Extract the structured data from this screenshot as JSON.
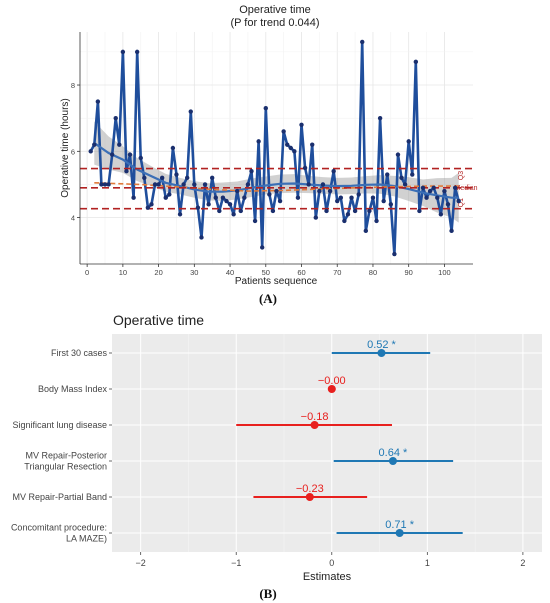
{
  "chart_data": [
    {
      "type": "line",
      "title": "Operative time",
      "subtitle": "(P for trend 0.044)",
      "xlabel": "Patients sequence",
      "ylabel": "Operative time (hours)",
      "xlim": [
        -2,
        108
      ],
      "ylim": [
        2.6,
        9.6
      ],
      "xticks": [
        0,
        10,
        20,
        30,
        40,
        50,
        60,
        70,
        80,
        90,
        100
      ],
      "yticks": [
        4,
        6,
        8
      ],
      "grid": true,
      "panel_label": "(A)",
      "reference_lines": [
        {
          "label": "Q3",
          "y": 5.48,
          "color": "#b22222"
        },
        {
          "label": "Median",
          "y": 4.9,
          "color": "#b22222"
        },
        {
          "label": "Q1",
          "y": 4.27,
          "color": "#b22222"
        }
      ],
      "series": [
        {
          "color": "#1f4e9c",
          "x": [
            1,
            2,
            3,
            4,
            5,
            6,
            7,
            8,
            9,
            10,
            11,
            12,
            13,
            14,
            15,
            16,
            17,
            18,
            19,
            20,
            21,
            22,
            23,
            24,
            25,
            26,
            27,
            28,
            29,
            30,
            31,
            32,
            33,
            34,
            35,
            36,
            37,
            38,
            39,
            40,
            41,
            42,
            43,
            44,
            45,
            46,
            47,
            48,
            49,
            50,
            51,
            52,
            53,
            54,
            55,
            56,
            57,
            58,
            59,
            60,
            61,
            62,
            63,
            64,
            65,
            66,
            67,
            68,
            69,
            70,
            71,
            72,
            73,
            74,
            75,
            76,
            77,
            78,
            79,
            80,
            81,
            82,
            83,
            84,
            85,
            86,
            87,
            88,
            89,
            90,
            91,
            92,
            93,
            94,
            95,
            96,
            97,
            98,
            99,
            100,
            101,
            102,
            103,
            104
          ],
          "y": [
            6.0,
            6.2,
            7.5,
            5.0,
            5.0,
            5.0,
            5.9,
            7.0,
            6.2,
            9.0,
            5.4,
            5.9,
            4.6,
            9.0,
            5.8,
            5.2,
            4.3,
            4.4,
            5.0,
            5.0,
            5.2,
            4.6,
            4.7,
            6.1,
            5.3,
            4.1,
            5.0,
            5.2,
            7.2,
            5.0,
            4.3,
            3.4,
            5.0,
            4.4,
            5.2,
            4.6,
            4.2,
            4.6,
            4.5,
            4.4,
            4.1,
            4.8,
            4.2,
            4.6,
            5.0,
            5.4,
            3.9,
            6.3,
            3.1,
            7.3,
            4.7,
            4.2,
            4.8,
            4.5,
            6.6,
            6.2,
            6.1,
            6.0,
            4.6,
            6.8,
            5.5,
            5.0,
            6.2,
            4.0,
            4.8,
            5.0,
            4.2,
            4.8,
            5.4,
            4.5,
            4.6,
            3.9,
            4.1,
            4.6,
            4.2,
            4.7,
            9.3,
            3.6,
            4.2,
            4.6,
            3.9,
            7.0,
            4.5,
            5.3,
            4.4,
            2.9,
            5.9,
            5.2,
            5.0,
            6.3,
            5.3,
            8.7,
            4.2,
            4.9,
            4.6,
            4.8,
            4.9,
            4.6,
            4.1,
            4.8,
            4.4,
            3.6,
            4.9,
            4.5
          ]
        },
        {
          "color": "#3b6fb6",
          "x": [
            2,
            6,
            10,
            14,
            18,
            22,
            26,
            30,
            34,
            38,
            42,
            46,
            50,
            54,
            58,
            62,
            66,
            70,
            74,
            78,
            82,
            86,
            90,
            94,
            98,
            102,
            104
          ],
          "y": [
            6.25,
            5.95,
            5.75,
            5.45,
            5.25,
            5.05,
            4.95,
            4.85,
            4.78,
            4.78,
            4.82,
            4.9,
            4.97,
            5.02,
            5.03,
            5.0,
            4.97,
            4.95,
            4.96,
            4.99,
            5.0,
            4.95,
            4.86,
            4.75,
            4.67,
            4.6,
            4.6
          ],
          "band_lo": [
            5.6,
            5.45,
            5.35,
            5.1,
            4.95,
            4.78,
            4.7,
            4.6,
            4.52,
            4.5,
            4.55,
            4.62,
            4.7,
            4.74,
            4.75,
            4.74,
            4.72,
            4.7,
            4.71,
            4.73,
            4.72,
            4.64,
            4.5,
            4.35,
            4.15,
            4.0,
            3.85
          ],
          "band_hi": [
            6.9,
            6.45,
            6.15,
            5.8,
            5.55,
            5.32,
            5.2,
            5.1,
            5.04,
            5.06,
            5.09,
            5.18,
            5.24,
            5.3,
            5.31,
            5.26,
            5.22,
            5.2,
            5.21,
            5.25,
            5.28,
            5.26,
            5.22,
            5.15,
            5.19,
            5.2,
            5.35
          ]
        },
        {
          "color": "#e07a3a",
          "x": [
            2,
            15,
            25,
            35,
            45,
            55,
            65,
            75,
            85,
            95,
            104
          ],
          "y": [
            5.05,
            5.0,
            4.93,
            4.85,
            4.8,
            4.82,
            4.86,
            4.9,
            4.93,
            4.95,
            4.95
          ]
        }
      ]
    },
    {
      "type": "scatter",
      "title": "Operative time",
      "xlabel": "Estimates",
      "xlim": [
        -2.3,
        2.2
      ],
      "xticks": [
        -2,
        -1,
        0,
        1,
        2
      ],
      "panel_label": "(B)",
      "categories": [
        "First 30 cases",
        "Body Mass Index",
        "Significant lung disease",
        "MV Repair-Posterior Triangular Resection",
        "MV Repair-Partial Band",
        "Concomitant procedure: LA MAZE)"
      ],
      "category_lines": [
        [
          "First 30 cases"
        ],
        [
          "Body Mass Index"
        ],
        [
          "Significant lung disease"
        ],
        [
          "MV Repair-Posterior",
          "Triangular Resection"
        ],
        [
          "MV Repair-Partial Band"
        ],
        [
          "Concomitant procedure:",
          "LA MAZE)"
        ]
      ],
      "estimates": [
        0.52,
        -0.0,
        -0.18,
        0.64,
        -0.23,
        0.71
      ],
      "ci_lo": [
        0.0,
        -0.04,
        -1.0,
        0.02,
        -0.82,
        0.05
      ],
      "ci_hi": [
        1.03,
        0.04,
        0.63,
        1.27,
        0.37,
        1.37
      ],
      "labels": [
        "0.52 *",
        "−0.00",
        "−0.18",
        "0.64 *",
        "−0.23",
        "0.71 *"
      ],
      "colors": [
        "#1f78b4",
        "#e8201e",
        "#e8201e",
        "#1f78b4",
        "#e8201e",
        "#1f78b4"
      ]
    }
  ]
}
